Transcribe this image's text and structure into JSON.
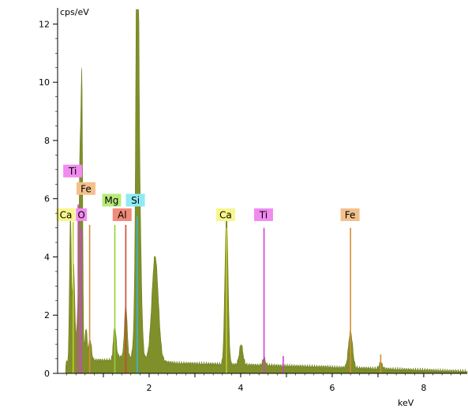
{
  "chart_data": {
    "type": "area",
    "title": "",
    "xlabel": "keV",
    "ylabel": "cps/eV",
    "xlim": [
      0.0,
      8.95
    ],
    "ylim": [
      0,
      12.5
    ],
    "x_ticks": [
      "2",
      "4",
      "6",
      "8"
    ],
    "y_ticks": [
      "0",
      "2",
      "4",
      "6",
      "8",
      "10",
      "12"
    ],
    "grid": false,
    "colors": {
      "spectrum_fill": "#7f8f2a",
      "spectrum_line": "#6f8222",
      "axis": "#000000"
    },
    "spectrum_peaks": [
      {
        "x": 0.28,
        "height": 5.0,
        "width": 0.02
      },
      {
        "x": 0.35,
        "height": 3.2,
        "width": 0.025
      },
      {
        "x": 0.45,
        "height": 1.8,
        "width": 0.03
      },
      {
        "x": 0.53,
        "height": 9.0,
        "width": 0.018
      },
      {
        "x": 0.49,
        "height": 6.0,
        "width": 0.02
      },
      {
        "x": 0.62,
        "height": 1.1,
        "width": 0.025
      },
      {
        "x": 0.71,
        "height": 0.7,
        "width": 0.03
      },
      {
        "x": 1.25,
        "height": 1.0,
        "width": 0.03
      },
      {
        "x": 1.49,
        "height": 1.8,
        "width": 0.03
      },
      {
        "x": 1.74,
        "height": 12.2,
        "width": 0.024
      },
      {
        "x": 1.76,
        "height": 8.0,
        "width": 0.05
      },
      {
        "x": 2.13,
        "height": 3.6,
        "width": 0.07
      },
      {
        "x": 3.69,
        "height": 5.1,
        "width": 0.035
      },
      {
        "x": 4.01,
        "height": 0.7,
        "width": 0.04
      },
      {
        "x": 4.51,
        "height": 0.25,
        "width": 0.03
      },
      {
        "x": 6.4,
        "height": 1.25,
        "width": 0.045
      },
      {
        "x": 7.06,
        "height": 0.2,
        "width": 0.035
      }
    ],
    "element_markers": [
      {
        "element": "Ca",
        "x": 0.34,
        "height": 5.2,
        "color": "#c9c92a"
      },
      {
        "element": "Ti",
        "x": 0.45,
        "height": 5.8,
        "color": "#d23fd2"
      },
      {
        "element": "Fe",
        "x": 0.7,
        "height": 5.1,
        "color": "#d98b3a"
      },
      {
        "element": "O",
        "x": 0.52,
        "height": 5.0,
        "color": "#d23fd2"
      },
      {
        "element": "Mg",
        "x": 1.25,
        "height": 5.1,
        "color": "#9acd32"
      },
      {
        "element": "Al",
        "x": 1.49,
        "height": 5.1,
        "color": "#d0452f"
      },
      {
        "element": "Si",
        "x": 1.74,
        "height": 5.4,
        "color": "#32b9d2"
      },
      {
        "element": "Ca",
        "x": 3.69,
        "height": 5.0,
        "color": "#c9c92a"
      },
      {
        "element": "Ti",
        "x": 4.51,
        "height": 5.0,
        "color": "#d23fd2"
      },
      {
        "element": "Fe",
        "x": 6.4,
        "height": 5.0,
        "color": "#d98b3a"
      },
      {
        "element": "Ti",
        "x": 4.93,
        "height": 0.6,
        "color": "#d23fd2"
      },
      {
        "element": "Fe",
        "x": 7.06,
        "height": 0.65,
        "color": "#d98b3a"
      }
    ],
    "labels": [
      {
        "text": "Ti",
        "x": 0.33,
        "y": 6.95,
        "bg": "#f08cf0"
      },
      {
        "text": "Fe",
        "x": 0.62,
        "y": 6.35,
        "bg": "#f3c08c"
      },
      {
        "text": "Ca",
        "x": 0.18,
        "y": 5.45,
        "bg": "#f6f68c"
      },
      {
        "text": "O",
        "x": 0.52,
        "y": 5.45,
        "bg": "#f08cf0"
      },
      {
        "text": "Mg",
        "x": 1.18,
        "y": 5.95,
        "bg": "#b7ea7a"
      },
      {
        "text": "Al",
        "x": 1.41,
        "y": 5.45,
        "bg": "#f08a7a"
      },
      {
        "text": "Si",
        "x": 1.7,
        "y": 5.95,
        "bg": "#8feaf5"
      },
      {
        "text": "Ca",
        "x": 3.67,
        "y": 5.45,
        "bg": "#f6f68c"
      },
      {
        "text": "Ti",
        "x": 4.5,
        "y": 5.45,
        "bg": "#f08cf0"
      },
      {
        "text": "Fe",
        "x": 6.39,
        "y": 5.45,
        "bg": "#f3c08c"
      }
    ]
  }
}
